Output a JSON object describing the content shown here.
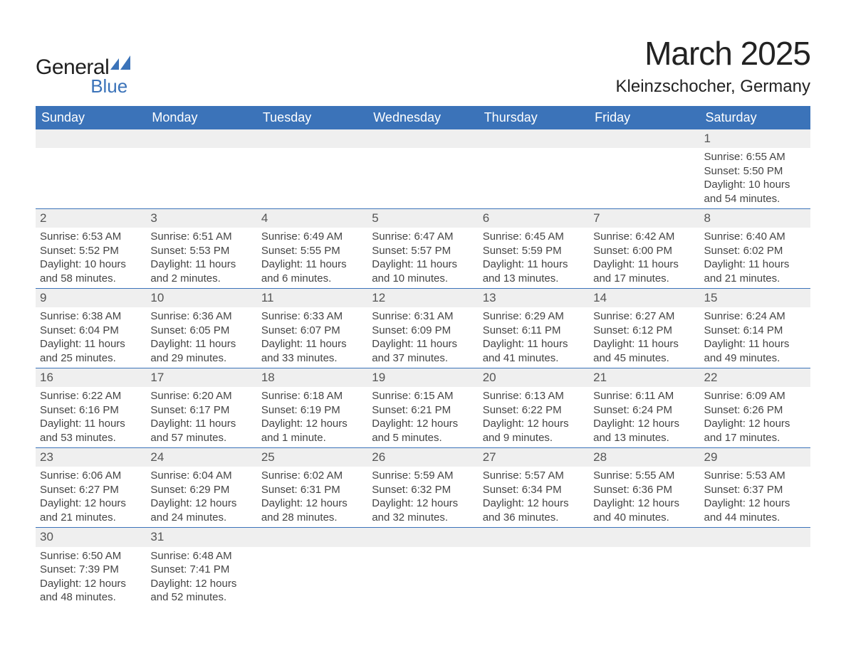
{
  "brand": {
    "word1": "General",
    "word2": "Blue",
    "brand_color": "#3b73b9"
  },
  "title": {
    "month": "March 2025",
    "location": "Kleinzschocher, Germany"
  },
  "dow": [
    "Sunday",
    "Monday",
    "Tuesday",
    "Wednesday",
    "Thursday",
    "Friday",
    "Saturday"
  ],
  "labels": {
    "sunrise": "Sunrise: ",
    "sunset": "Sunset: ",
    "daylight": "Daylight: "
  },
  "colors": {
    "header_bg": "#3b73b9",
    "header_text": "#ffffff",
    "daynum_bg": "#efefef",
    "row_border": "#3b73b9",
    "body_text": "#444444"
  },
  "type": "table",
  "columns": [
    "Sunday",
    "Monday",
    "Tuesday",
    "Wednesday",
    "Thursday",
    "Friday",
    "Saturday"
  ],
  "weeks": [
    [
      null,
      null,
      null,
      null,
      null,
      null,
      {
        "d": "1",
        "sr": "6:55 AM",
        "ss": "5:50 PM",
        "dl": "10 hours and 54 minutes."
      }
    ],
    [
      {
        "d": "2",
        "sr": "6:53 AM",
        "ss": "5:52 PM",
        "dl": "10 hours and 58 minutes."
      },
      {
        "d": "3",
        "sr": "6:51 AM",
        "ss": "5:53 PM",
        "dl": "11 hours and 2 minutes."
      },
      {
        "d": "4",
        "sr": "6:49 AM",
        "ss": "5:55 PM",
        "dl": "11 hours and 6 minutes."
      },
      {
        "d": "5",
        "sr": "6:47 AM",
        "ss": "5:57 PM",
        "dl": "11 hours and 10 minutes."
      },
      {
        "d": "6",
        "sr": "6:45 AM",
        "ss": "5:59 PM",
        "dl": "11 hours and 13 minutes."
      },
      {
        "d": "7",
        "sr": "6:42 AM",
        "ss": "6:00 PM",
        "dl": "11 hours and 17 minutes."
      },
      {
        "d": "8",
        "sr": "6:40 AM",
        "ss": "6:02 PM",
        "dl": "11 hours and 21 minutes."
      }
    ],
    [
      {
        "d": "9",
        "sr": "6:38 AM",
        "ss": "6:04 PM",
        "dl": "11 hours and 25 minutes."
      },
      {
        "d": "10",
        "sr": "6:36 AM",
        "ss": "6:05 PM",
        "dl": "11 hours and 29 minutes."
      },
      {
        "d": "11",
        "sr": "6:33 AM",
        "ss": "6:07 PM",
        "dl": "11 hours and 33 minutes."
      },
      {
        "d": "12",
        "sr": "6:31 AM",
        "ss": "6:09 PM",
        "dl": "11 hours and 37 minutes."
      },
      {
        "d": "13",
        "sr": "6:29 AM",
        "ss": "6:11 PM",
        "dl": "11 hours and 41 minutes."
      },
      {
        "d": "14",
        "sr": "6:27 AM",
        "ss": "6:12 PM",
        "dl": "11 hours and 45 minutes."
      },
      {
        "d": "15",
        "sr": "6:24 AM",
        "ss": "6:14 PM",
        "dl": "11 hours and 49 minutes."
      }
    ],
    [
      {
        "d": "16",
        "sr": "6:22 AM",
        "ss": "6:16 PM",
        "dl": "11 hours and 53 minutes."
      },
      {
        "d": "17",
        "sr": "6:20 AM",
        "ss": "6:17 PM",
        "dl": "11 hours and 57 minutes."
      },
      {
        "d": "18",
        "sr": "6:18 AM",
        "ss": "6:19 PM",
        "dl": "12 hours and 1 minute."
      },
      {
        "d": "19",
        "sr": "6:15 AM",
        "ss": "6:21 PM",
        "dl": "12 hours and 5 minutes."
      },
      {
        "d": "20",
        "sr": "6:13 AM",
        "ss": "6:22 PM",
        "dl": "12 hours and 9 minutes."
      },
      {
        "d": "21",
        "sr": "6:11 AM",
        "ss": "6:24 PM",
        "dl": "12 hours and 13 minutes."
      },
      {
        "d": "22",
        "sr": "6:09 AM",
        "ss": "6:26 PM",
        "dl": "12 hours and 17 minutes."
      }
    ],
    [
      {
        "d": "23",
        "sr": "6:06 AM",
        "ss": "6:27 PM",
        "dl": "12 hours and 21 minutes."
      },
      {
        "d": "24",
        "sr": "6:04 AM",
        "ss": "6:29 PM",
        "dl": "12 hours and 24 minutes."
      },
      {
        "d": "25",
        "sr": "6:02 AM",
        "ss": "6:31 PM",
        "dl": "12 hours and 28 minutes."
      },
      {
        "d": "26",
        "sr": "5:59 AM",
        "ss": "6:32 PM",
        "dl": "12 hours and 32 minutes."
      },
      {
        "d": "27",
        "sr": "5:57 AM",
        "ss": "6:34 PM",
        "dl": "12 hours and 36 minutes."
      },
      {
        "d": "28",
        "sr": "5:55 AM",
        "ss": "6:36 PM",
        "dl": "12 hours and 40 minutes."
      },
      {
        "d": "29",
        "sr": "5:53 AM",
        "ss": "6:37 PM",
        "dl": "12 hours and 44 minutes."
      }
    ],
    [
      {
        "d": "30",
        "sr": "6:50 AM",
        "ss": "7:39 PM",
        "dl": "12 hours and 48 minutes."
      },
      {
        "d": "31",
        "sr": "6:48 AM",
        "ss": "7:41 PM",
        "dl": "12 hours and 52 minutes."
      },
      null,
      null,
      null,
      null,
      null
    ]
  ]
}
